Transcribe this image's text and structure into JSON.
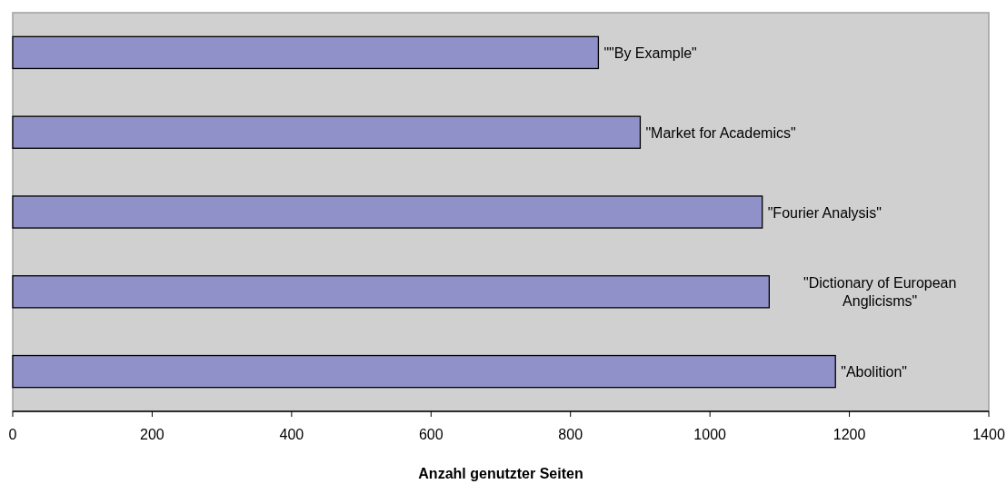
{
  "chart_data": {
    "type": "bar",
    "orientation": "horizontal",
    "xlabel": "Anzahl genutzter Seiten",
    "categories": [
      "\"\"By Example\"",
      "\"Market for Academics\"",
      "\"Fourier Analysis\"",
      "\"Dictionary of European Anglicisms\"",
      "\"Abolition\""
    ],
    "values": [
      840,
      900,
      1075,
      1085,
      1180
    ],
    "color": "#9191c9",
    "xlim": [
      0,
      1400
    ],
    "xticks": [
      0,
      200,
      400,
      600,
      800,
      1000,
      1200,
      1400
    ],
    "grid": false
  }
}
